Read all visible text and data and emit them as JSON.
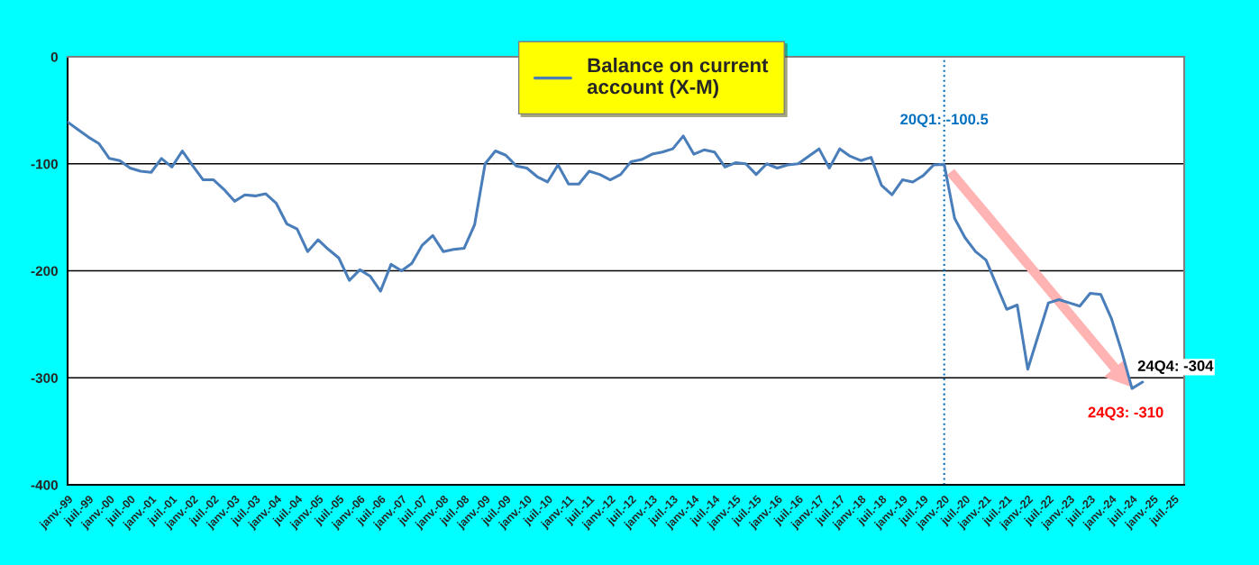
{
  "chart_data": {
    "type": "line",
    "x": [
      "1999-01",
      "1999-04",
      "1999-07",
      "1999-10",
      "2000-01",
      "2000-04",
      "2000-07",
      "2000-10",
      "2001-01",
      "2001-04",
      "2001-07",
      "2001-10",
      "2002-01",
      "2002-04",
      "2002-07",
      "2002-10",
      "2003-01",
      "2003-04",
      "2003-07",
      "2003-10",
      "2004-01",
      "2004-04",
      "2004-07",
      "2004-10",
      "2005-01",
      "2005-04",
      "2005-07",
      "2005-10",
      "2006-01",
      "2006-04",
      "2006-07",
      "2006-10",
      "2007-01",
      "2007-04",
      "2007-07",
      "2007-10",
      "2008-01",
      "2008-04",
      "2008-07",
      "2008-10",
      "2009-01",
      "2009-04",
      "2009-07",
      "2009-10",
      "2010-01",
      "2010-04",
      "2010-07",
      "2010-10",
      "2011-01",
      "2011-04",
      "2011-07",
      "2011-10",
      "2012-01",
      "2012-04",
      "2012-07",
      "2012-10",
      "2013-01",
      "2013-04",
      "2013-07",
      "2013-10",
      "2014-01",
      "2014-04",
      "2014-07",
      "2014-10",
      "2015-01",
      "2015-04",
      "2015-07",
      "2015-10",
      "2016-01",
      "2016-04",
      "2016-07",
      "2016-10",
      "2017-01",
      "2017-04",
      "2017-07",
      "2017-10",
      "2018-01",
      "2018-04",
      "2018-07",
      "2018-10",
      "2019-01",
      "2019-04",
      "2019-07",
      "2019-10",
      "2020-01",
      "2020-04",
      "2020-07",
      "2020-10",
      "2021-01",
      "2021-04",
      "2021-07",
      "2021-10",
      "2022-01",
      "2022-04",
      "2022-07",
      "2022-10",
      "2023-01",
      "2023-04",
      "2023-07",
      "2023-10",
      "2024-01",
      "2024-04",
      "2024-07",
      "2024-10"
    ],
    "series": [
      {
        "name": "Balance on current\naccount (X-M)",
        "color": "#4a7ebb",
        "values": [
          -61,
          -68,
          -75,
          -81,
          -95,
          -97,
          -104,
          -107,
          -108,
          -95,
          -103,
          -88,
          -102,
          -115,
          -115,
          -124,
          -135,
          -129,
          -130,
          -128,
          -137,
          -156,
          -161,
          -182,
          -171,
          -180,
          -188,
          -209,
          -199,
          -205,
          -219,
          -194,
          -200,
          -193,
          -176,
          -167,
          -182,
          -180,
          -179,
          -157,
          -100,
          -88,
          -92,
          -102,
          -104,
          -112,
          -117,
          -101,
          -119,
          -119,
          -107,
          -110,
          -115,
          -110,
          -98,
          -96,
          -91,
          -89,
          -86,
          -74,
          -91,
          -87,
          -89,
          -103,
          -99,
          -100,
          -110,
          -100,
          -104,
          -101,
          -100,
          -93,
          -86,
          -104,
          -86,
          -93,
          -97,
          -94,
          -120,
          -129,
          -115,
          -117,
          -111,
          -101,
          -100.5,
          -151,
          -169,
          -182,
          -190,
          -213,
          -236,
          -232,
          -292,
          -261,
          -230,
          -227,
          -230,
          -233,
          -221,
          -222,
          -244,
          -275,
          -310,
          -304
        ]
      }
    ],
    "xlim": [
      "1999-01",
      "2025-10"
    ],
    "xticks": [
      {
        "value": "1999-01",
        "label": "janv.-99"
      },
      {
        "value": "1999-07",
        "label": "juil.-99"
      },
      {
        "value": "2000-01",
        "label": "janv.-00"
      },
      {
        "value": "2000-07",
        "label": "juil.-00"
      },
      {
        "value": "2001-01",
        "label": "janv.-01"
      },
      {
        "value": "2001-07",
        "label": "juil.-01"
      },
      {
        "value": "2002-01",
        "label": "janv.-02"
      },
      {
        "value": "2002-07",
        "label": "juil.-02"
      },
      {
        "value": "2003-01",
        "label": "janv.-03"
      },
      {
        "value": "2003-07",
        "label": "juil.-03"
      },
      {
        "value": "2004-01",
        "label": "janv.-04"
      },
      {
        "value": "2004-07",
        "label": "juil.-04"
      },
      {
        "value": "2005-01",
        "label": "janv.-05"
      },
      {
        "value": "2005-07",
        "label": "juil.-05"
      },
      {
        "value": "2006-01",
        "label": "janv.-06"
      },
      {
        "value": "2006-07",
        "label": "juil.-06"
      },
      {
        "value": "2007-01",
        "label": "janv.-07"
      },
      {
        "value": "2007-07",
        "label": "juil.-07"
      },
      {
        "value": "2008-01",
        "label": "janv.-08"
      },
      {
        "value": "2008-07",
        "label": "juil.-08"
      },
      {
        "value": "2009-01",
        "label": "janv.-09"
      },
      {
        "value": "2009-07",
        "label": "juil.-09"
      },
      {
        "value": "2010-01",
        "label": "janv.-10"
      },
      {
        "value": "2010-07",
        "label": "juil.-10"
      },
      {
        "value": "2011-01",
        "label": "janv.-11"
      },
      {
        "value": "2011-07",
        "label": "juil.-11"
      },
      {
        "value": "2012-01",
        "label": "janv.-12"
      },
      {
        "value": "2012-07",
        "label": "juil.-12"
      },
      {
        "value": "2013-01",
        "label": "janv.-13"
      },
      {
        "value": "2013-07",
        "label": "juil.-13"
      },
      {
        "value": "2014-01",
        "label": "janv.-14"
      },
      {
        "value": "2014-07",
        "label": "juil.-14"
      },
      {
        "value": "2015-01",
        "label": "janv.-15"
      },
      {
        "value": "2015-07",
        "label": "juil.-15"
      },
      {
        "value": "2016-01",
        "label": "janv.-16"
      },
      {
        "value": "2016-07",
        "label": "juil.-16"
      },
      {
        "value": "2017-01",
        "label": "janv.-17"
      },
      {
        "value": "2017-07",
        "label": "juil.-17"
      },
      {
        "value": "2018-01",
        "label": "janv.-18"
      },
      {
        "value": "2018-07",
        "label": "juil.-18"
      },
      {
        "value": "2019-01",
        "label": "janv.-19"
      },
      {
        "value": "2019-07",
        "label": "juil.-19"
      },
      {
        "value": "2020-01",
        "label": "janv.-20"
      },
      {
        "value": "2020-07",
        "label": "juil.-20"
      },
      {
        "value": "2021-01",
        "label": "janv.-21"
      },
      {
        "value": "2021-07",
        "label": "juil.-21"
      },
      {
        "value": "2022-01",
        "label": "janv.-22"
      },
      {
        "value": "2022-07",
        "label": "juil.-22"
      },
      {
        "value": "2023-01",
        "label": "janv.-23"
      },
      {
        "value": "2023-07",
        "label": "juil.-23"
      },
      {
        "value": "2024-01",
        "label": "janv.-24"
      },
      {
        "value": "2024-07",
        "label": "juil.-24"
      },
      {
        "value": "2025-01",
        "label": "janv.-25"
      },
      {
        "value": "2025-07",
        "label": "juil.-25"
      }
    ],
    "ylim": [
      -400,
      0
    ],
    "yticks": [
      -400,
      -300,
      -200,
      -100,
      0
    ],
    "grid": "y",
    "legend": "top",
    "ref_lines": [
      {
        "axis": "x",
        "value": "2020-01",
        "color": "#0070c0",
        "line_style": "dotted"
      }
    ],
    "annotations": [
      {
        "text": "20Q1: -100.5",
        "x": "2020-01",
        "y": -100.5
      },
      {
        "text": "24Q3: -310",
        "x": "2024-07",
        "y": -310
      },
      {
        "text": "24Q4: -304",
        "x": "2024-10",
        "y": -304
      }
    ]
  }
}
